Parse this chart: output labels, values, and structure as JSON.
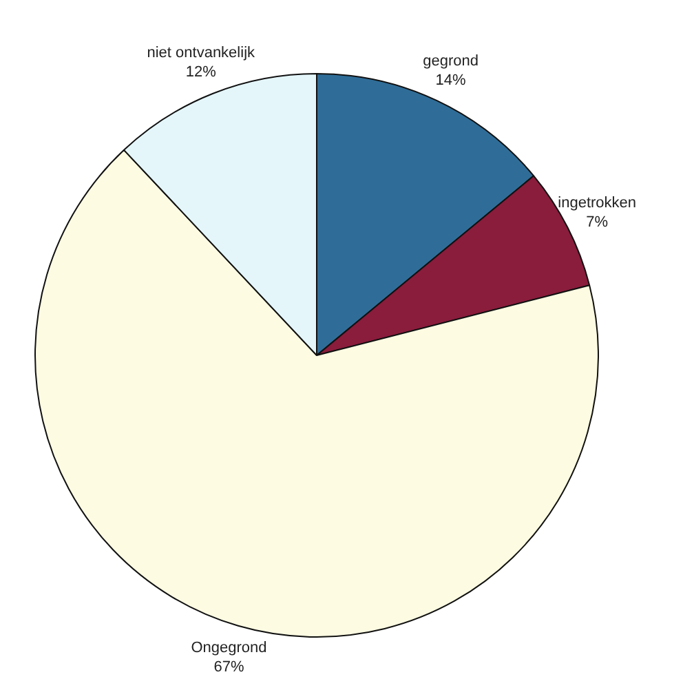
{
  "chart_data": {
    "type": "pie",
    "categories": [
      "gegrond",
      "ingetrokken",
      "Ongegrond",
      "niet ontvankelijk"
    ],
    "values": [
      14,
      7,
      67,
      12
    ],
    "value_labels": [
      "14%",
      "7%",
      "67%",
      "12%"
    ],
    "colors": [
      "#2f6d98",
      "#8a1c3c",
      "#fdfbe2",
      "#e4f6fa"
    ],
    "legend": false
  }
}
